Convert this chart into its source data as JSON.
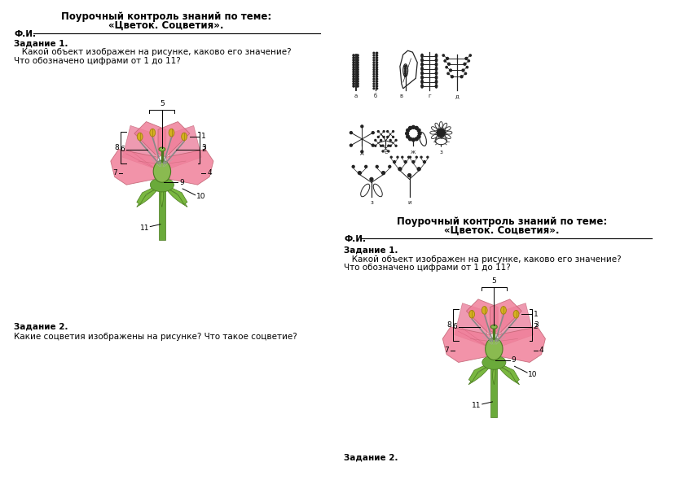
{
  "title_line1": "Поурочный контроль знаний по теме:",
  "title_line2": "«Цветок. Соцветия».",
  "fi_label": "Ф.И.",
  "task1_bold": "Задание 1.",
  "task1_text1": "   Какой объект изображен на рисунке, каково его значение?",
  "task1_text2": "Что обозначено цифрами от 1 до 11?",
  "task2_bold": "Задание 2.",
  "task2_text": "Какие соцветия изображены на рисунке? Что такое соцветие?",
  "bg_color": "#ffffff",
  "text_color": "#000000",
  "petal_color": "#f0809a",
  "sepal_color": "#7ab840",
  "stem_color": "#6aaa3a",
  "anther_color": "#d4b020",
  "ovary_color": "#7ab840",
  "filament_color": "#888888",
  "font_size_title": 8.5,
  "font_size_body": 7.5,
  "font_size_num": 6.5
}
